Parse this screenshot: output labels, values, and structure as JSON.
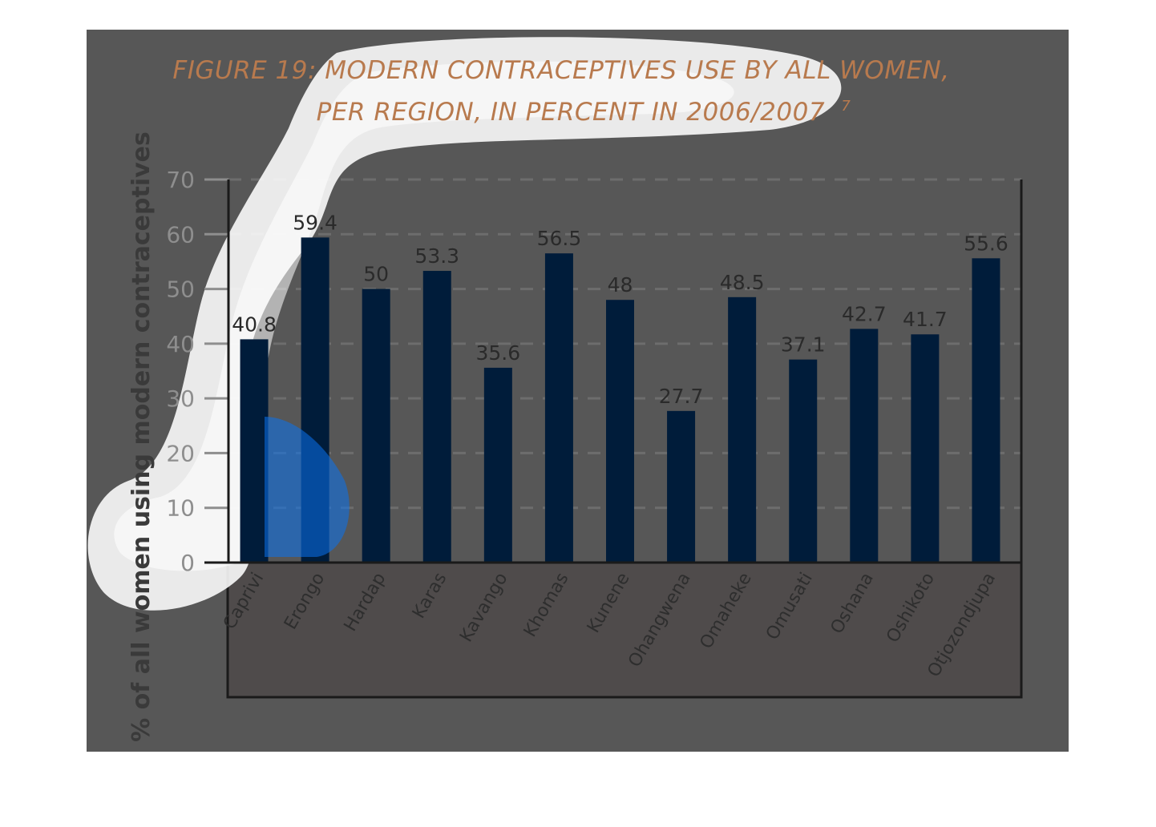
{
  "chart_data": {
    "type": "bar",
    "title": "FIGURE 19: MODERN CONTRACEPTIVES USE BY ALL WOMEN,",
    "subtitle": "PER REGION, IN PERCENT IN 2006/2007",
    "title_footnote": "7",
    "xlabel": "",
    "ylabel": "% of all women using modern contraceptives",
    "ylim": [
      0,
      70
    ],
    "yticks": [
      "0",
      "10",
      "20",
      "30",
      "40",
      "50",
      "60",
      "70"
    ],
    "grid": "horizontal dashed",
    "categories": [
      "Caprivi",
      "Erongo",
      "Hardap",
      "Karas",
      "Kavango",
      "Khomas",
      "Kunene",
      "Ohangwena",
      "Omaheke",
      "Omusati",
      "Oshana",
      "Oshikoto",
      "Otjozondjupa"
    ],
    "values": [
      40.8,
      59.4,
      50,
      53.3,
      35.6,
      56.5,
      48,
      27.7,
      48.5,
      37.1,
      42.7,
      41.7,
      55.6
    ],
    "value_labels": [
      "40.8",
      "59.4",
      "50",
      "53.3",
      "35.6",
      "56.5",
      "48",
      "27.7",
      "48.5",
      "37.1",
      "42.7",
      "41.7",
      "55.6"
    ],
    "colors": {
      "bar": "#001c3a",
      "panel_background": "#575757",
      "category_band": "#4f4b4b",
      "title": "#b87a4e",
      "grid": "#6d6d6d",
      "axis": "#1a1a1a",
      "highlight": "#0a72f0"
    }
  }
}
